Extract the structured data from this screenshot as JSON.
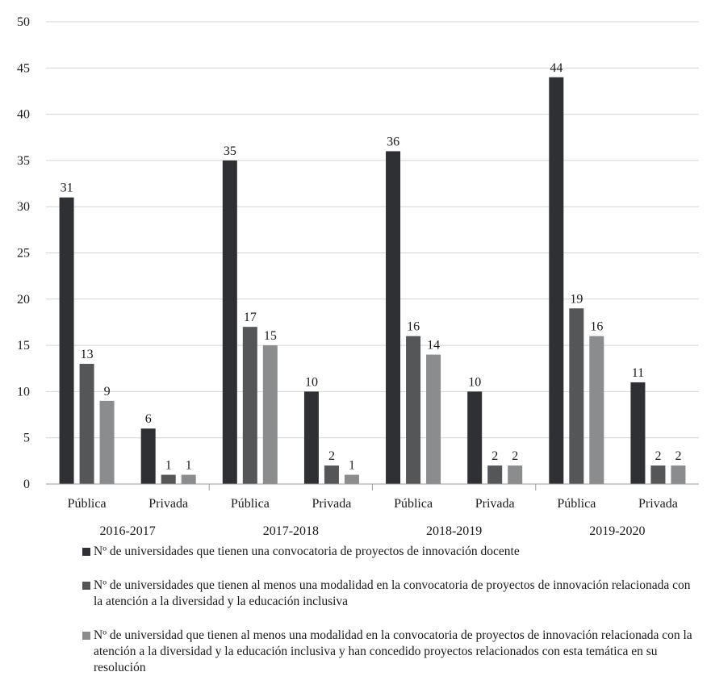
{
  "chart_data": {
    "type": "bar",
    "ylim": [
      0,
      50
    ],
    "yticks": [
      "0",
      "5",
      "10",
      "15",
      "20",
      "25",
      "30",
      "35",
      "40",
      "45",
      "50"
    ],
    "grid": true,
    "legend_position": "bottom",
    "groups": [
      {
        "label": "2016-2017",
        "categories": [
          "Pública",
          "Privada"
        ]
      },
      {
        "label": "2017-2018",
        "categories": [
          "Pública",
          "Privada"
        ]
      },
      {
        "label": "2018-2019",
        "categories": [
          "Pública",
          "Privada"
        ]
      },
      {
        "label": "2019-2020",
        "categories": [
          "Pública",
          "Privada"
        ]
      }
    ],
    "categories": [
      "Pública",
      "Privada",
      "Pública",
      "Privada",
      "Pública",
      "Privada",
      "Pública",
      "Privada"
    ],
    "series": [
      {
        "name": "Nº de universidades que tienen una convocatoria de proyectos de innovación docente",
        "color": "#2e3033",
        "values": [
          31,
          6,
          35,
          10,
          36,
          10,
          44,
          11
        ]
      },
      {
        "name": "Nº de universidades que tienen al menos una modalidad en la convocatoria de proyectos de innovación relacionada con la atención a la diversidad y la educación inclusiva",
        "color": "#545658",
        "values": [
          13,
          1,
          17,
          2,
          16,
          2,
          19,
          2
        ]
      },
      {
        "name": "Nº de universidad que tienen al menos una modalidad en la convocatoria de proyectos de innovación relacionada con la atención a la diversidad y la educación inclusiva y han concedido proyectos relacionados con esta temática en su resolución",
        "color": "#8a8c8d",
        "values": [
          9,
          1,
          15,
          1,
          14,
          2,
          16,
          2
        ]
      }
    ]
  }
}
